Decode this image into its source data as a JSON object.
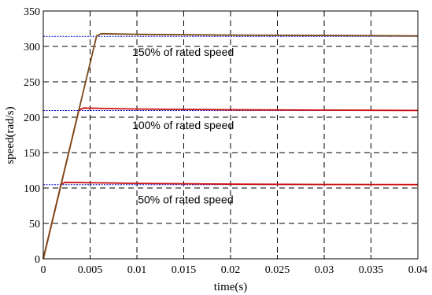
{
  "chart_data": {
    "type": "line",
    "xlabel": "time(s)",
    "ylabel": "speed(rad/s)",
    "xlim": [
      0,
      0.04
    ],
    "ylim": [
      0,
      350
    ],
    "xticks": [
      0,
      0.005,
      0.01,
      0.015,
      0.02,
      0.025,
      0.03,
      0.035,
      0.04
    ],
    "xtick_labels": [
      "0",
      "0.005",
      "0.01",
      "0.015",
      "0.02",
      "0.025",
      "0.03",
      "0.035",
      "0.04"
    ],
    "yticks": [
      0,
      50,
      100,
      150,
      200,
      250,
      300,
      350
    ],
    "ytick_labels": [
      "0",
      "50",
      "100",
      "150",
      "200",
      "250",
      "300",
      "350"
    ],
    "grid": true,
    "references": [
      {
        "y": 104.7,
        "color": "#0000cc",
        "style": "dotted"
      },
      {
        "y": 209.4,
        "color": "#0000cc",
        "style": "dotted"
      },
      {
        "y": 314.1,
        "color": "#0000cc",
        "style": "dotted"
      }
    ],
    "series": [
      {
        "color": "#cc1111",
        "x": [
          0,
          0.0019,
          0.0023,
          0.01,
          0.02,
          0.03,
          0.04
        ],
        "y": [
          0,
          105,
          108,
          106.5,
          105.5,
          105,
          104.8
        ]
      },
      {
        "color": "#cc1111",
        "x": [
          0,
          0.0038,
          0.0043,
          0.01,
          0.02,
          0.03,
          0.04
        ],
        "y": [
          0,
          210,
          213,
          211.5,
          210.5,
          210,
          209.6
        ]
      },
      {
        "color": "#7a4a1a",
        "x": [
          0,
          0.0057,
          0.0062,
          0.01,
          0.02,
          0.03,
          0.04
        ],
        "y": [
          0,
          315,
          318,
          317,
          316,
          315.5,
          314.8
        ]
      }
    ],
    "annotations": [
      {
        "text": "150% of rated speed",
        "x": 0.0095,
        "y": 292
      },
      {
        "text": "100% of rated speed",
        "x": 0.0095,
        "y": 189
      },
      {
        "text": "50% of rated speed",
        "x": 0.0101,
        "y": 84
      }
    ]
  }
}
